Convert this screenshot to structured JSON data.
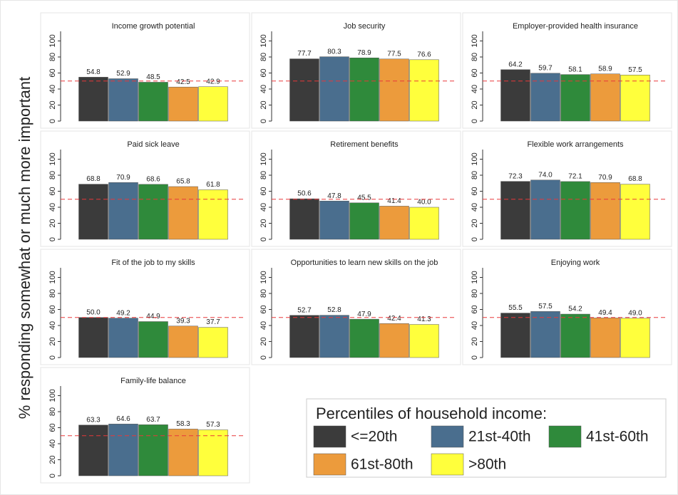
{
  "ylabel": "% responding somewhat or much more important",
  "legend": {
    "title": "Percentiles of household income:",
    "entries": [
      {
        "name": "<=20th",
        "color": "#3b3b3b"
      },
      {
        "name": "21st-40th",
        "color": "#4a6e8e"
      },
      {
        "name": "41st-60th",
        "color": "#2f8a3b"
      },
      {
        "name": "61st-80th",
        "color": "#ec9b3c"
      },
      {
        "name": ">80th",
        "color": "#ffff3c"
      }
    ]
  },
  "chart_data": [
    {
      "type": "bar",
      "title": "Income growth potential",
      "values": [
        54.8,
        52.9,
        48.5,
        42.5,
        42.9
      ],
      "value_labels": [
        "54.8",
        "52.9",
        "48.5",
        "42.5",
        "42.9"
      ],
      "ylim": [
        0,
        112
      ],
      "yticks": [
        0,
        20,
        40,
        60,
        80,
        100
      ],
      "reference_line": 50,
      "reference_color": "#e8383b"
    },
    {
      "type": "bar",
      "title": "Job security",
      "values": [
        77.7,
        80.3,
        78.9,
        77.5,
        76.6
      ],
      "value_labels": [
        "77.7",
        "80.3",
        "78.9",
        "77.5",
        "76.6"
      ],
      "ylim": [
        0,
        112
      ],
      "yticks": [
        0,
        20,
        40,
        60,
        80,
        100
      ],
      "reference_line": 50,
      "reference_color": "#e8383b"
    },
    {
      "type": "bar",
      "title": "Employer-provided health insurance",
      "values": [
        64.2,
        59.7,
        58.1,
        58.9,
        57.5
      ],
      "value_labels": [
        "64.2",
        "59.7",
        "58.1",
        "58.9",
        "57.5"
      ],
      "ylim": [
        0,
        112
      ],
      "yticks": [
        0,
        20,
        40,
        60,
        80,
        100
      ],
      "reference_line": 50,
      "reference_color": "#e8383b"
    },
    {
      "type": "bar",
      "title": "Paid sick leave",
      "values": [
        68.8,
        70.9,
        68.6,
        65.8,
        61.8
      ],
      "value_labels": [
        "68.8",
        "70.9",
        "68.6",
        "65.8",
        "61.8"
      ],
      "ylim": [
        0,
        112
      ],
      "yticks": [
        0,
        20,
        40,
        60,
        80,
        100
      ],
      "reference_line": 50,
      "reference_color": "#e8383b"
    },
    {
      "type": "bar",
      "title": "Retirement benefits",
      "values": [
        50.6,
        47.8,
        45.5,
        41.4,
        40
      ],
      "value_labels": [
        "50.6",
        "47.8",
        "45.5",
        "41.4",
        "40.0"
      ],
      "ylim": [
        0,
        112
      ],
      "yticks": [
        0,
        20,
        40,
        60,
        80,
        100
      ],
      "reference_line": 50,
      "reference_color": "#e8383b"
    },
    {
      "type": "bar",
      "title": "Flexible work arrangements",
      "values": [
        72.3,
        74,
        72.1,
        70.9,
        68.8
      ],
      "value_labels": [
        "72.3",
        "74.0",
        "72.1",
        "70.9",
        "68.8"
      ],
      "ylim": [
        0,
        112
      ],
      "yticks": [
        0,
        20,
        40,
        60,
        80,
        100
      ],
      "reference_line": 50,
      "reference_color": "#e8383b"
    },
    {
      "type": "bar",
      "title": "Fit of the job to my skills",
      "values": [
        50,
        49.2,
        44.9,
        39.3,
        37.7
      ],
      "value_labels": [
        "50.0",
        "49.2",
        "44.9",
        "39.3",
        "37.7"
      ],
      "ylim": [
        0,
        112
      ],
      "yticks": [
        0,
        20,
        40,
        60,
        80,
        100
      ],
      "reference_line": 50,
      "reference_color": "#e8383b"
    },
    {
      "type": "bar",
      "title": "Opportunities to learn new skills on the job",
      "values": [
        52.7,
        52.8,
        47.9,
        42.4,
        41.3
      ],
      "value_labels": [
        "52.7",
        "52.8",
        "47.9",
        "42.4",
        "41.3"
      ],
      "ylim": [
        0,
        112
      ],
      "yticks": [
        0,
        20,
        40,
        60,
        80,
        100
      ],
      "reference_line": 50,
      "reference_color": "#e8383b"
    },
    {
      "type": "bar",
      "title": "Enjoying work",
      "values": [
        55.5,
        57.5,
        54.2,
        49.4,
        49
      ],
      "value_labels": [
        "55.5",
        "57.5",
        "54.2",
        "49.4",
        "49.0"
      ],
      "ylim": [
        0,
        112
      ],
      "yticks": [
        0,
        20,
        40,
        60,
        80,
        100
      ],
      "reference_line": 50,
      "reference_color": "#e8383b"
    },
    {
      "type": "bar",
      "title": "Family-life balance",
      "values": [
        63.3,
        64.6,
        63.7,
        58.3,
        57.3
      ],
      "value_labels": [
        "63.3",
        "64.6",
        "63.7",
        "58.3",
        "57.3"
      ],
      "ylim": [
        0,
        112
      ],
      "yticks": [
        0,
        20,
        40,
        60,
        80,
        100
      ],
      "reference_line": 50,
      "reference_color": "#e8383b"
    }
  ]
}
